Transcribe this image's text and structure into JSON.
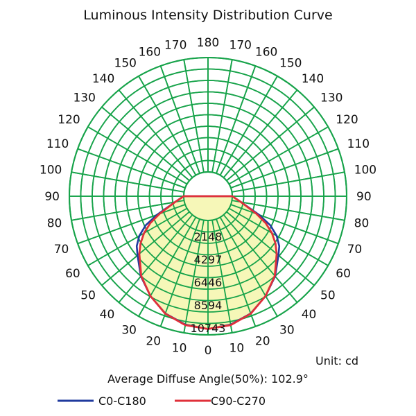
{
  "chart_data": {
    "type": "polar",
    "title": "Luminous Intensity Distribution Curve",
    "unit_label": "Unit: cd",
    "average_diffuse_label": "Average Diffuse Angle(50%): 102.9°",
    "average_diffuse_angle_deg": 102.9,
    "max_intensity_cd": 10743,
    "ring_labels": [
      "2148",
      "4297",
      "6446",
      "8594",
      "10743"
    ],
    "ring_values": [
      2148,
      4297,
      6446,
      8594,
      10743
    ],
    "angle_labels_right": [
      "0",
      "10",
      "20",
      "30",
      "40",
      "50",
      "60",
      "70",
      "80",
      "90",
      "100",
      "110",
      "120",
      "130",
      "140",
      "150",
      "160",
      "170",
      "180"
    ],
    "angle_labels_left": [
      "10",
      "20",
      "30",
      "40",
      "50",
      "60",
      "70",
      "80",
      "90",
      "100",
      "110",
      "120",
      "130",
      "140",
      "150",
      "160",
      "170"
    ],
    "colors": {
      "grid": "#17a34a",
      "fill": "#f6f7b8",
      "c0": "#1f3a9e",
      "c90": "#e0303a"
    },
    "series": [
      {
        "name": "C0-C180",
        "color": "#1f3a9e",
        "angles": [
          0,
          10,
          20,
          30,
          40,
          50,
          55,
          60,
          65,
          70,
          80,
          90
        ],
        "values": [
          10190,
          9960,
          9440,
          8540,
          7530,
          6360,
          5890,
          5170,
          4180,
          2810,
          860,
          0
        ]
      },
      {
        "name": "C90-C270",
        "color": "#e0303a",
        "angles": [
          0,
          10,
          20,
          30,
          40,
          50,
          55,
          60,
          65,
          70,
          80,
          90
        ],
        "values": [
          10190,
          10010,
          9460,
          8540,
          7480,
          6140,
          5460,
          4660,
          3700,
          2560,
          860,
          0
        ]
      }
    ],
    "legend": [
      "C0-C180",
      "C90-C270"
    ]
  }
}
